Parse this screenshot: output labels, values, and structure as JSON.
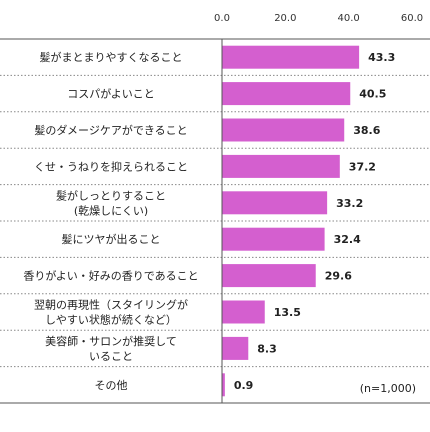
{
  "chart_data": {
    "type": "bar",
    "orientation": "horizontal",
    "categories": [
      [
        "髪がまとまりやすくなること"
      ],
      [
        "コスパがよいこと"
      ],
      [
        "髪のダメージケアができること"
      ],
      [
        "くせ・うねりを抑えられること"
      ],
      [
        "髪がしっとりすること",
        "(乾燥しにくい)"
      ],
      [
        "髪にツヤが出ること"
      ],
      [
        "香りがよい・好みの香りであること"
      ],
      [
        "翌朝の再現性（スタイリングが",
        "しやすい状態が続くなど）"
      ],
      [
        "美容師・サロンが推奨して",
        "いること"
      ],
      [
        "その他"
      ]
    ],
    "values": [
      43.3,
      40.5,
      38.6,
      37.2,
      33.2,
      32.4,
      29.6,
      13.5,
      8.3,
      0.9
    ],
    "value_labels": [
      "43.3",
      "40.5",
      "38.6",
      "37.2",
      "33.2",
      "32.4",
      "29.6",
      "13.5",
      "8.3",
      "0.9"
    ],
    "xticks": [
      "0.0",
      "20.0",
      "40.0",
      "60.0"
    ],
    "xlim": [
      0,
      60
    ],
    "bar_color": "#d45fcf",
    "grid": false,
    "note": "(n=1,000)"
  }
}
